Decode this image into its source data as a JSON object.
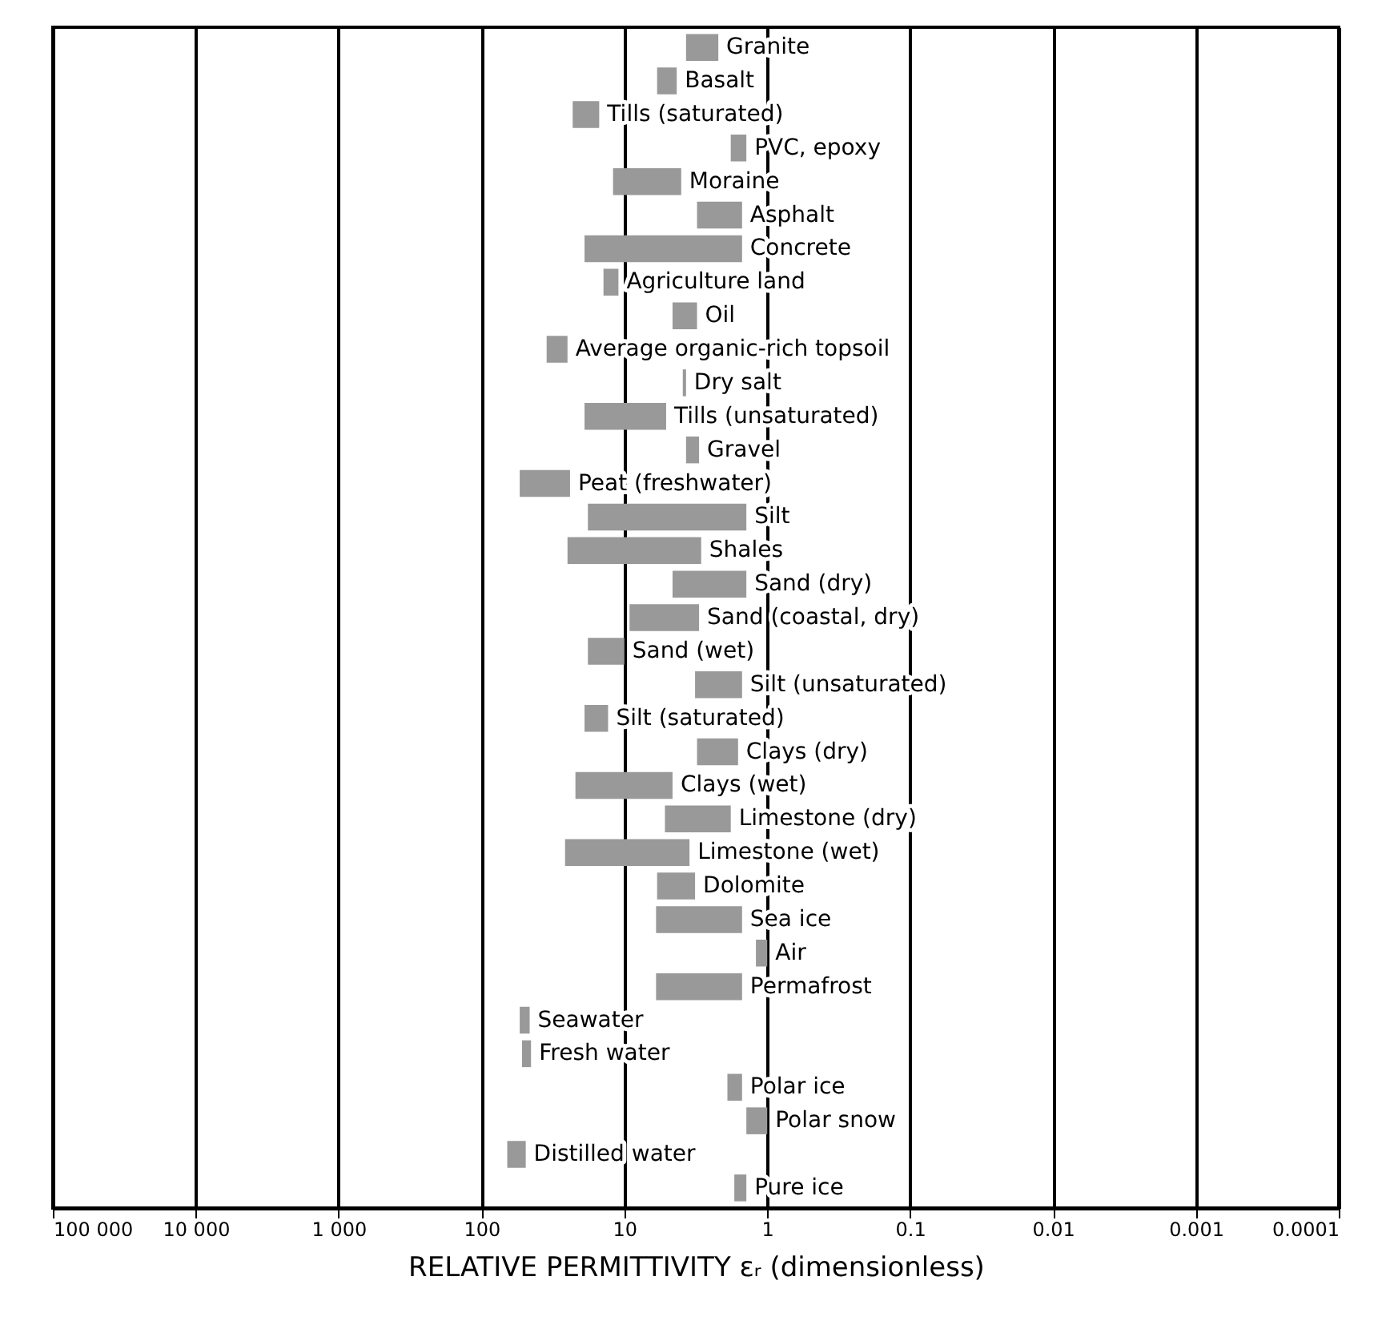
{
  "chart_data": {
    "type": "bar",
    "orientation": "horizontal",
    "xlabel": "RELATIVE PERMITTIVITY εᵣ (dimensionless)",
    "categories": [
      "Granite",
      "Basalt",
      "Tills (saturated)",
      "PVC, epoxy",
      "Moraine",
      "Asphalt",
      "Concrete",
      "Agriculture land",
      "Oil",
      "Average organic-rich topsoil",
      "Dry salt",
      "Tills (unsaturated)",
      "Gravel",
      "Peat (freshwater)",
      "Silt",
      "Shales",
      "Sand (dry)",
      "Sand (coastal, dry)",
      "Sand (wet)",
      "Silt (unsaturated)",
      "Silt (saturated)",
      "Clays (dry)",
      "Clays (wet)",
      "Limestone (dry)",
      "Limestone (wet)",
      "Dolomite",
      "Sea ice",
      "Air",
      "Permafrost",
      "Seawater",
      "Fresh water",
      "Polar ice",
      "Polar snow",
      "Distilled water",
      "Pure ice"
    ],
    "base": [
      2.2,
      4.3,
      15,
      1.4,
      4,
      1.5,
      1.5,
      11,
      3.1,
      25,
      3.7,
      5.1,
      3,
      24,
      1.4,
      2.9,
      1.4,
      3,
      10,
      1.5,
      13,
      1.6,
      4.6,
      1.8,
      3.5,
      3.2,
      1.5,
      1,
      1.5,
      46,
      45,
      1.5,
      1,
      49,
      1.4
    ],
    "values": [
      1.5,
      1.6,
      8,
      0.4,
      8,
      1.6,
      17.5,
      3,
      1.5,
      10,
      0.2,
      13.9,
      0.7,
      30,
      16.6,
      22.1,
      3.2,
      6.2,
      8,
      1.7,
      6,
      1.5,
      17.4,
      3.4,
      22.5,
      2.7,
      4.5,
      0.2,
      4.5,
      8,
      7,
      0.4,
      0.4,
      17,
      0.3
    ],
    "color": "#999999",
    "log": "x",
    "xlim": [
      100000,
      0.0001
    ],
    "xticks": [
      {
        "value": 100000,
        "label": "100 000"
      },
      {
        "value": 10000,
        "label": "10 000"
      },
      {
        "value": 1000,
        "label": "1 000"
      },
      100,
      10,
      1,
      0.1,
      0.01,
      0.001,
      0.0001
    ],
    "grid": "x"
  }
}
